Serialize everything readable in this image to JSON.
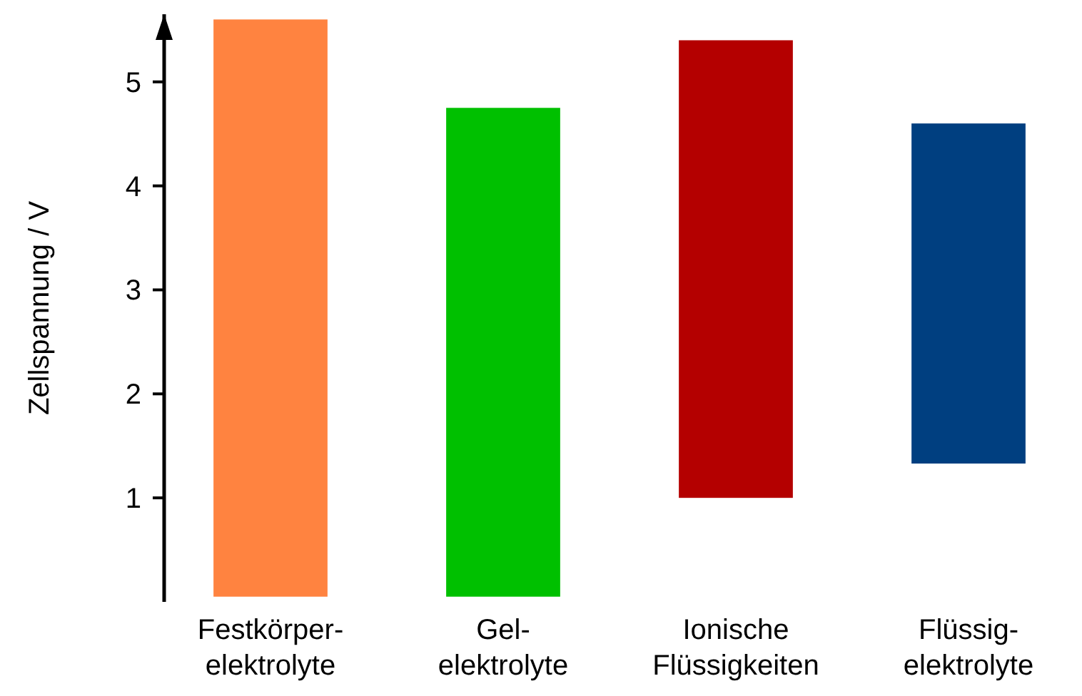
{
  "chart_data": {
    "type": "bar",
    "ylabel": "Zellspannung / V",
    "categories": [
      "Festkörper-\nelektrolyte",
      "Gel-\nelektrolyte",
      "Ionische\nFlüssigkeiten",
      "Flüssig-\nelektrolyte"
    ],
    "values": [
      5.55,
      4.7,
      4.4,
      3.27
    ],
    "base": [
      0.05,
      0.05,
      1.0,
      1.33
    ],
    "colors": [
      "#ff8340",
      "#00c000",
      "#b40000",
      "#003f80"
    ],
    "ylim": [
      0,
      5.65
    ],
    "yticks": [
      1,
      2,
      3,
      4,
      5
    ],
    "grid": false
  }
}
